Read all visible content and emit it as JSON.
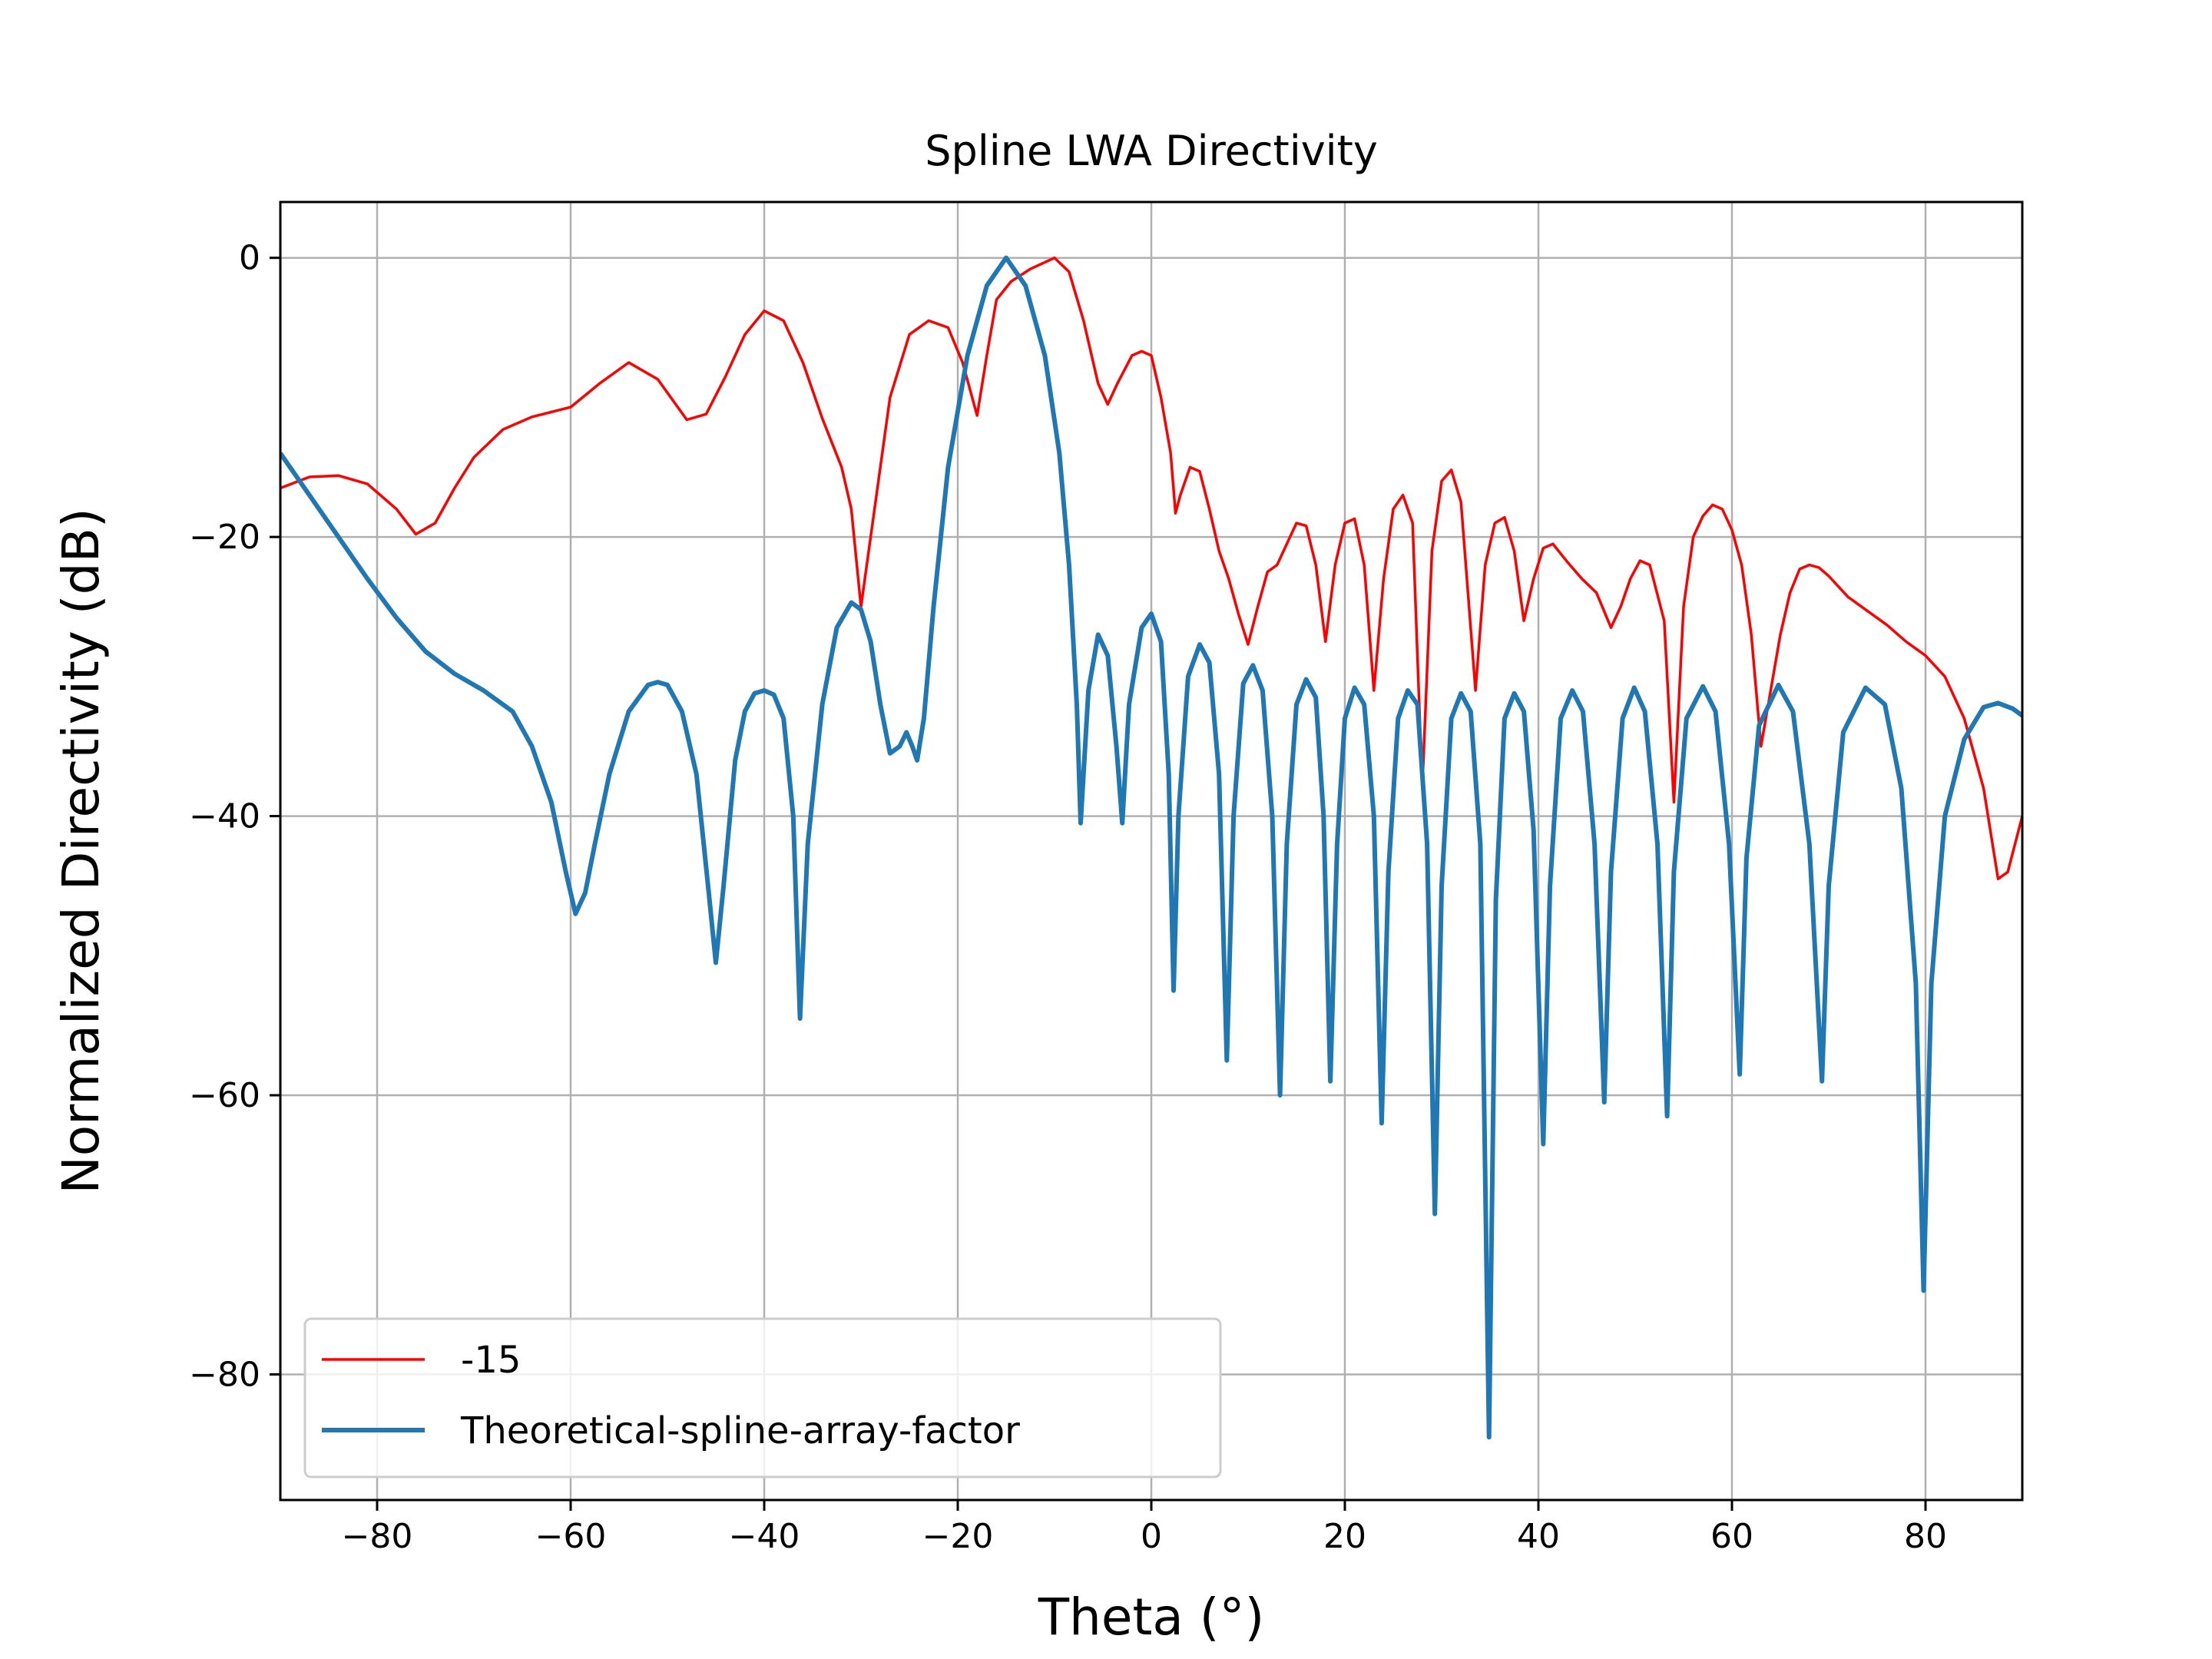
{
  "chart_data": {
    "type": "line",
    "title": "Spline LWA Directivity",
    "xlabel": "Theta (°)",
    "ylabel": "Normalized Directivity (dB)",
    "xlim": [
      -90,
      90
    ],
    "ylim": [
      -89,
      4
    ],
    "xticks": [
      -80,
      -60,
      -40,
      -20,
      0,
      20,
      40,
      60,
      80
    ],
    "xtick_labels": [
      "−80",
      "−60",
      "−40",
      "−20",
      "0",
      "20",
      "40",
      "60",
      "80"
    ],
    "yticks": [
      0,
      -20,
      -40,
      -60,
      -80
    ],
    "ytick_labels": [
      "0",
      "−20",
      "−40",
      "−60",
      "−80"
    ],
    "grid": true,
    "legend_position": "lower-left",
    "series": [
      {
        "name": "-15",
        "color": "#ff0000",
        "points": [
          [
            -90,
            -16.5
          ],
          [
            -87,
            -15.7
          ],
          [
            -84,
            -15.6
          ],
          [
            -81,
            -16.2
          ],
          [
            -78,
            -18
          ],
          [
            -76,
            -19.8
          ],
          [
            -74,
            -19
          ],
          [
            -72,
            -16.5
          ],
          [
            -70,
            -14.3
          ],
          [
            -67,
            -12.3
          ],
          [
            -64,
            -11.4
          ],
          [
            -60,
            -10.7
          ],
          [
            -57,
            -9
          ],
          [
            -54,
            -7.5
          ],
          [
            -51,
            -8.7
          ],
          [
            -48,
            -11.6
          ],
          [
            -46,
            -11.2
          ],
          [
            -44,
            -8.5
          ],
          [
            -42,
            -5.5
          ],
          [
            -40,
            -3.8
          ],
          [
            -38,
            -4.5
          ],
          [
            -36,
            -7.5
          ],
          [
            -34,
            -11.5
          ],
          [
            -32,
            -15
          ],
          [
            -31,
            -18
          ],
          [
            -30,
            -25
          ],
          [
            -29,
            -20
          ],
          [
            -27,
            -10
          ],
          [
            -25,
            -5.5
          ],
          [
            -23,
            -4.5
          ],
          [
            -21,
            -5
          ],
          [
            -19.5,
            -7.5
          ],
          [
            -18,
            -11.3
          ],
          [
            -17,
            -7
          ],
          [
            -16,
            -3
          ],
          [
            -14.5,
            -1.7
          ],
          [
            -12.5,
            -0.8
          ],
          [
            -10,
            0
          ],
          [
            -8.5,
            -1
          ],
          [
            -7,
            -4.5
          ],
          [
            -5.5,
            -9
          ],
          [
            -4.5,
            -10.5
          ],
          [
            -3.5,
            -9
          ],
          [
            -2,
            -7
          ],
          [
            -1,
            -6.7
          ],
          [
            0,
            -7
          ],
          [
            1,
            -10
          ],
          [
            2,
            -14
          ],
          [
            2.5,
            -18.3
          ],
          [
            3,
            -17
          ],
          [
            4,
            -15
          ],
          [
            5,
            -15.3
          ],
          [
            6,
            -18
          ],
          [
            7,
            -21
          ],
          [
            8,
            -23
          ],
          [
            9,
            -25.5
          ],
          [
            10,
            -27.7
          ],
          [
            11,
            -25
          ],
          [
            12,
            -22.5
          ],
          [
            13,
            -22
          ],
          [
            14,
            -20.5
          ],
          [
            15,
            -19
          ],
          [
            16,
            -19.2
          ],
          [
            17,
            -22
          ],
          [
            18,
            -27.5
          ],
          [
            19,
            -22
          ],
          [
            20,
            -19
          ],
          [
            21,
            -18.7
          ],
          [
            22,
            -22
          ],
          [
            23,
            -31
          ],
          [
            24,
            -23
          ],
          [
            25,
            -18
          ],
          [
            26,
            -17
          ],
          [
            27,
            -19
          ],
          [
            28,
            -38
          ],
          [
            29,
            -21
          ],
          [
            30,
            -16
          ],
          [
            31,
            -15.2
          ],
          [
            32,
            -17.5
          ],
          [
            33.5,
            -31
          ],
          [
            34.5,
            -22
          ],
          [
            35.5,
            -19
          ],
          [
            36.5,
            -18.6
          ],
          [
            37.5,
            -21
          ],
          [
            38.5,
            -26
          ],
          [
            39.5,
            -23
          ],
          [
            40.5,
            -20.8
          ],
          [
            41.5,
            -20.5
          ],
          [
            43,
            -21.8
          ],
          [
            44.5,
            -23
          ],
          [
            46,
            -24
          ],
          [
            47.5,
            -26.5
          ],
          [
            48.5,
            -25
          ],
          [
            49.5,
            -23
          ],
          [
            50.5,
            -21.7
          ],
          [
            51.5,
            -22
          ],
          [
            53,
            -26
          ],
          [
            54,
            -39
          ],
          [
            55,
            -25
          ],
          [
            56,
            -20
          ],
          [
            57,
            -18.5
          ],
          [
            58,
            -17.7
          ],
          [
            59,
            -18
          ],
          [
            60,
            -19.5
          ],
          [
            61,
            -22
          ],
          [
            62,
            -27
          ],
          [
            63,
            -35
          ],
          [
            64,
            -31
          ],
          [
            65,
            -27
          ],
          [
            66,
            -24
          ],
          [
            67,
            -22.3
          ],
          [
            68,
            -22
          ],
          [
            69,
            -22.2
          ],
          [
            70,
            -22.8
          ],
          [
            72,
            -24.3
          ],
          [
            74,
            -25.3
          ],
          [
            76,
            -26.3
          ],
          [
            78,
            -27.5
          ],
          [
            80,
            -28.5
          ],
          [
            82,
            -30
          ],
          [
            84,
            -33
          ],
          [
            86,
            -38
          ],
          [
            87.5,
            -44.5
          ],
          [
            88.5,
            -44
          ],
          [
            90,
            -40
          ]
        ]
      },
      {
        "name": "Theoretical-spline-array-factor",
        "color": "#1f77b4",
        "points": [
          [
            -90,
            -14
          ],
          [
            -87,
            -17
          ],
          [
            -84,
            -20
          ],
          [
            -81,
            -23
          ],
          [
            -78,
            -25.8
          ],
          [
            -75,
            -28.2
          ],
          [
            -72,
            -29.8
          ],
          [
            -69,
            -31
          ],
          [
            -66,
            -32.5
          ],
          [
            -64,
            -35
          ],
          [
            -62,
            -39
          ],
          [
            -60.5,
            -44
          ],
          [
            -59.5,
            -47
          ],
          [
            -58.5,
            -45.5
          ],
          [
            -57.5,
            -42
          ],
          [
            -56,
            -37
          ],
          [
            -54,
            -32.5
          ],
          [
            -52,
            -30.6
          ],
          [
            -51,
            -30.4
          ],
          [
            -50,
            -30.6
          ],
          [
            -48.5,
            -32.5
          ],
          [
            -47,
            -37
          ],
          [
            -45.8,
            -45
          ],
          [
            -45,
            -50.5
          ],
          [
            -44.2,
            -45
          ],
          [
            -43,
            -36
          ],
          [
            -42,
            -32.5
          ],
          [
            -41,
            -31.2
          ],
          [
            -40,
            -31
          ],
          [
            -39,
            -31.3
          ],
          [
            -38,
            -33
          ],
          [
            -37,
            -40
          ],
          [
            -36.3,
            -54.5
          ],
          [
            -35.5,
            -42
          ],
          [
            -34,
            -32
          ],
          [
            -32.5,
            -26.5
          ],
          [
            -31,
            -24.7
          ],
          [
            -30,
            -25.2
          ],
          [
            -29,
            -27.5
          ],
          [
            -28,
            -32
          ],
          [
            -27,
            -35.5
          ],
          [
            -26,
            -35
          ],
          [
            -25.3,
            -34
          ],
          [
            -24.7,
            -35
          ],
          [
            -24.2,
            -36
          ],
          [
            -23.5,
            -33
          ],
          [
            -22.5,
            -25
          ],
          [
            -21,
            -15
          ],
          [
            -19,
            -7
          ],
          [
            -17,
            -2
          ],
          [
            -15,
            0
          ],
          [
            -13,
            -2
          ],
          [
            -11,
            -7
          ],
          [
            -9.5,
            -14
          ],
          [
            -8.5,
            -22
          ],
          [
            -7.7,
            -32
          ],
          [
            -7.3,
            -40.5
          ],
          [
            -6.5,
            -31
          ],
          [
            -5.5,
            -27
          ],
          [
            -4.5,
            -28.5
          ],
          [
            -3.6,
            -35
          ],
          [
            -3,
            -40.5
          ],
          [
            -2.3,
            -32
          ],
          [
            -1,
            -26.5
          ],
          [
            0,
            -25.5
          ],
          [
            1,
            -27.5
          ],
          [
            1.8,
            -37
          ],
          [
            2.3,
            -52.5
          ],
          [
            2.8,
            -40
          ],
          [
            3.8,
            -30
          ],
          [
            5,
            -27.7
          ],
          [
            6,
            -29
          ],
          [
            7,
            -37
          ],
          [
            7.8,
            -57.5
          ],
          [
            8.5,
            -40
          ],
          [
            9.5,
            -30.5
          ],
          [
            10.5,
            -29.2
          ],
          [
            11.5,
            -31
          ],
          [
            12.5,
            -40
          ],
          [
            13.3,
            -60
          ],
          [
            14,
            -42
          ],
          [
            15,
            -32
          ],
          [
            16,
            -30.2
          ],
          [
            17,
            -31.5
          ],
          [
            17.8,
            -40
          ],
          [
            18.5,
            -59
          ],
          [
            19.2,
            -42
          ],
          [
            20,
            -33
          ],
          [
            21,
            -30.8
          ],
          [
            22,
            -32
          ],
          [
            23,
            -40
          ],
          [
            23.8,
            -62
          ],
          [
            24.5,
            -44
          ],
          [
            25.5,
            -33
          ],
          [
            26.5,
            -31
          ],
          [
            27.5,
            -32
          ],
          [
            28.5,
            -42
          ],
          [
            29.3,
            -68.5
          ],
          [
            30,
            -45
          ],
          [
            31,
            -33
          ],
          [
            32,
            -31.2
          ],
          [
            33,
            -32.5
          ],
          [
            34,
            -42
          ],
          [
            34.9,
            -84.5
          ],
          [
            35.6,
            -46
          ],
          [
            36.5,
            -33
          ],
          [
            37.5,
            -31.2
          ],
          [
            38.5,
            -32.5
          ],
          [
            39.5,
            -41
          ],
          [
            40.5,
            -63.5
          ],
          [
            41.2,
            -45
          ],
          [
            42.3,
            -33
          ],
          [
            43.5,
            -31
          ],
          [
            44.6,
            -32.5
          ],
          [
            45.8,
            -42
          ],
          [
            46.8,
            -60.5
          ],
          [
            47.5,
            -44
          ],
          [
            48.7,
            -33
          ],
          [
            49.9,
            -30.8
          ],
          [
            51,
            -32.5
          ],
          [
            52.3,
            -42
          ],
          [
            53.3,
            -61.5
          ],
          [
            54,
            -44
          ],
          [
            55.3,
            -33
          ],
          [
            57,
            -30.7
          ],
          [
            58.3,
            -32.5
          ],
          [
            59.7,
            -42
          ],
          [
            60.8,
            -58.5
          ],
          [
            61.5,
            -43
          ],
          [
            62.8,
            -33.5
          ],
          [
            64.8,
            -30.6
          ],
          [
            66.3,
            -32.5
          ],
          [
            68,
            -42
          ],
          [
            69.3,
            -59
          ],
          [
            70,
            -45
          ],
          [
            71.5,
            -34
          ],
          [
            73.8,
            -30.8
          ],
          [
            75.8,
            -32
          ],
          [
            77.5,
            -38
          ],
          [
            79,
            -52
          ],
          [
            79.8,
            -74
          ],
          [
            80.6,
            -52
          ],
          [
            82,
            -40
          ],
          [
            84,
            -34.5
          ],
          [
            86,
            -32.2
          ],
          [
            87.5,
            -31.9
          ],
          [
            89,
            -32.3
          ],
          [
            90,
            -32.8
          ]
        ]
      }
    ]
  }
}
